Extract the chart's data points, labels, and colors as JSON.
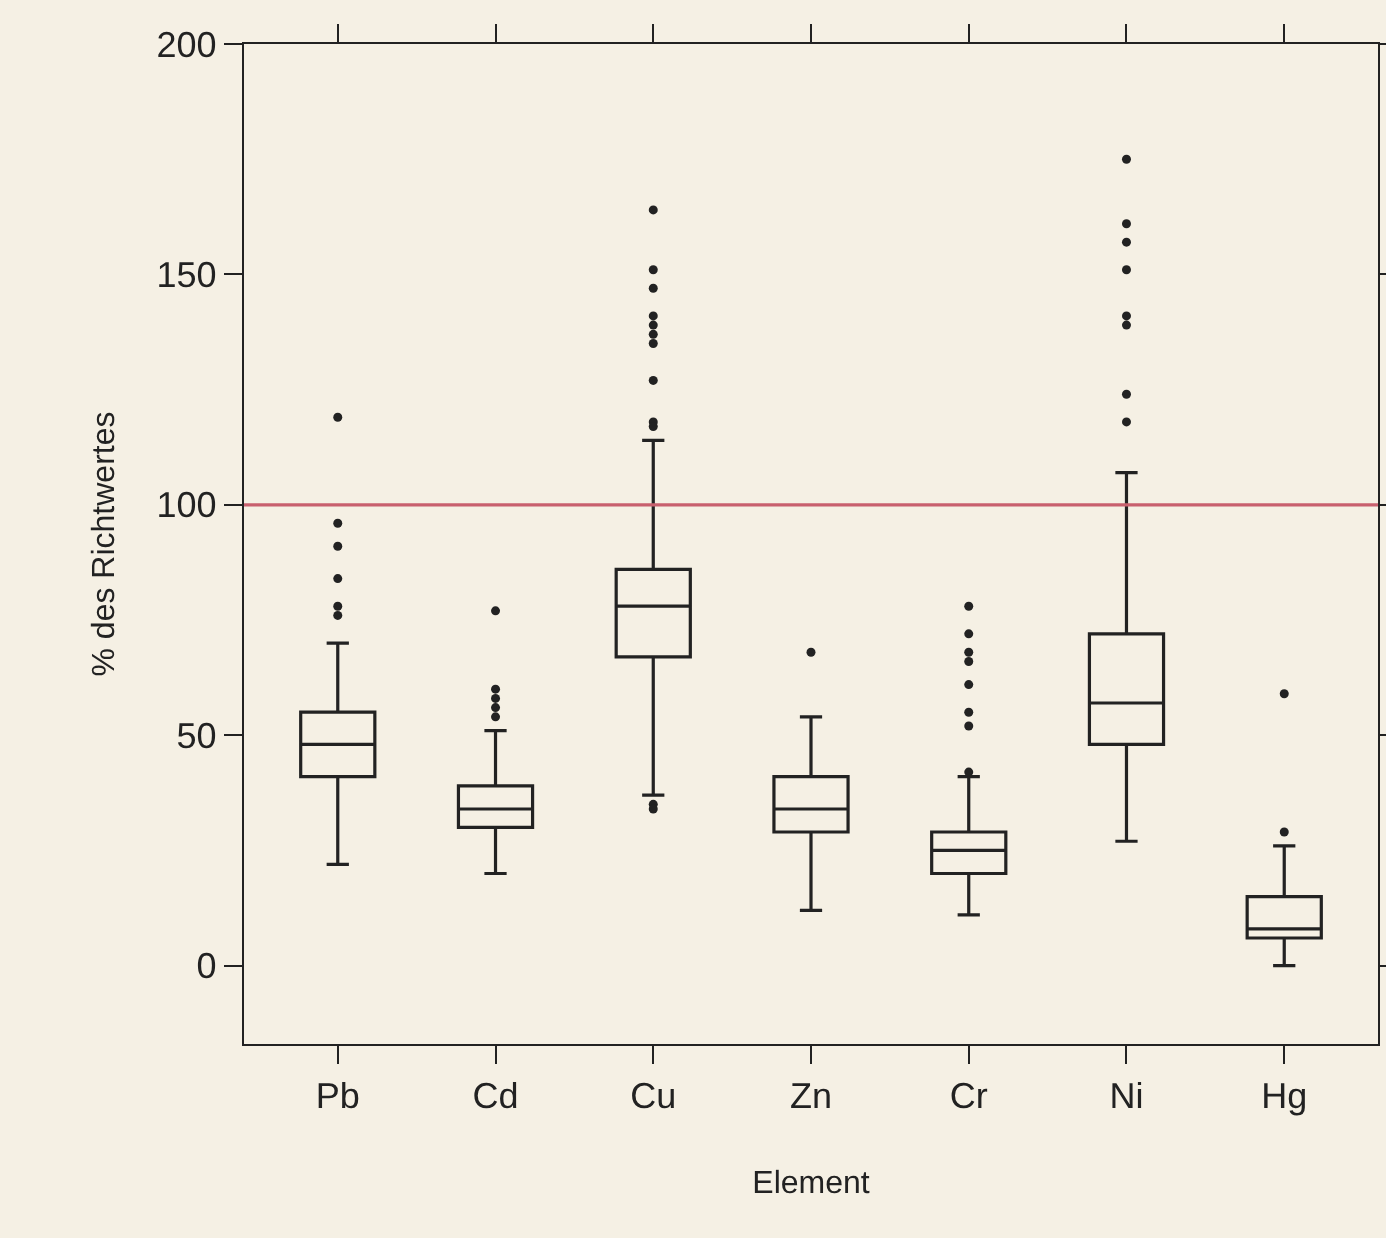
{
  "chart_data": {
    "type": "box",
    "xlabel": "Element",
    "ylabel": "% des Richtwertes",
    "categories": [
      "Pb",
      "Cd",
      "Cu",
      "Zn",
      "Cr",
      "Ni",
      "Hg"
    ],
    "boxes": [
      {
        "low": 22,
        "q1": 41,
        "median": 48,
        "q3": 55,
        "high": 70,
        "outliers": [
          119,
          96,
          91,
          84,
          78,
          76
        ]
      },
      {
        "low": 20,
        "q1": 30,
        "median": 34,
        "q3": 39,
        "high": 51,
        "outliers": [
          77,
          60,
          58,
          56,
          54
        ]
      },
      {
        "low": 37,
        "q1": 67,
        "median": 78,
        "q3": 86,
        "high": 114,
        "outliers": [
          164,
          151,
          147,
          141,
          139,
          137,
          135,
          127,
          118,
          117,
          35,
          34
        ]
      },
      {
        "low": 12,
        "q1": 29,
        "median": 34,
        "q3": 41,
        "high": 54,
        "outliers": [
          68
        ]
      },
      {
        "low": 11,
        "q1": 20,
        "median": 25,
        "q3": 29,
        "high": 41,
        "outliers": [
          78,
          72,
          68,
          66,
          61,
          55,
          52,
          42
        ]
      },
      {
        "low": 27,
        "q1": 48,
        "median": 57,
        "q3": 72,
        "high": 107,
        "outliers": [
          175,
          161,
          157,
          151,
          141,
          139,
          124,
          118
        ]
      },
      {
        "low": 0,
        "q1": 6,
        "median": 8,
        "q3": 15,
        "high": 26,
        "outliers": [
          59,
          29
        ]
      }
    ],
    "color": "#222222",
    "ylim": [
      -17,
      200
    ],
    "yticks": [
      0,
      50,
      100,
      150,
      200
    ],
    "ref_lines": [
      {
        "axis": "y",
        "value": 100,
        "color": "#c8606e"
      }
    ],
    "marker": "circle"
  }
}
